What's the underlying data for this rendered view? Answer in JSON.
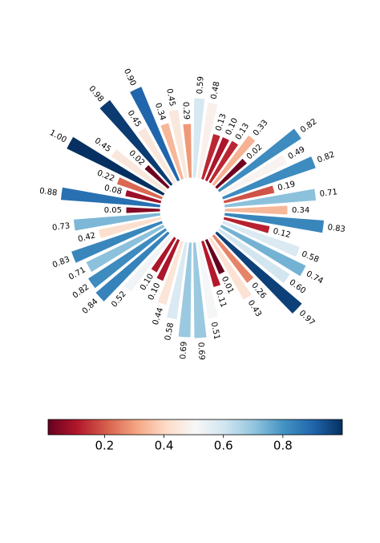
{
  "chart_data": {
    "type": "radial_bar",
    "values": [
      0.59,
      0.48,
      0.13,
      0.1,
      0.13,
      0.33,
      0.02,
      0.82,
      0.49,
      0.82,
      0.19,
      0.71,
      0.34,
      0.83,
      0.12,
      0.58,
      0.74,
      0.6,
      0.97,
      0.26,
      0.43,
      0.01,
      0.11,
      0.51,
      0.69,
      0.69,
      0.58,
      0.44,
      0.1,
      0.1,
      0.52,
      0.84,
      0.82,
      0.71,
      0.83,
      0.42,
      0.73,
      0.05,
      0.88,
      0.08,
      0.22,
      1.0,
      0.45,
      0.02,
      0.98,
      0.45,
      0.9,
      0.34,
      0.45,
      0.29
    ],
    "value_labels": [
      "0.59",
      "0.48",
      "0.13",
      "0.10",
      "0.13",
      "0.33",
      "0.02",
      "0.82",
      "0.49",
      "0.82",
      "0.19",
      "0.71",
      "0.34",
      "0.83",
      "0.12",
      "0.58",
      "0.74",
      "0.60",
      "0.97",
      "0.26",
      "0.43",
      "0.01",
      "0.11",
      "0.51",
      "0.69",
      "0.69",
      "0.58",
      "0.44",
      "0.10",
      "0.10",
      "0.52",
      "0.84",
      "0.82",
      "0.71",
      "0.83",
      "0.42",
      "0.73",
      "0.05",
      "0.88",
      "0.08",
      "0.22",
      "1.00",
      "0.45",
      "0.02",
      "0.98",
      "0.45",
      "0.90",
      "0.34",
      "0.45",
      "0.29"
    ],
    "heights": [
      100,
      96,
      59,
      59,
      60,
      77,
      50,
      123,
      92,
      123,
      65,
      115,
      79,
      125,
      59,
      102,
      118,
      106,
      140,
      74,
      89,
      47,
      60,
      97,
      120,
      119,
      98,
      83,
      56,
      50,
      88,
      119,
      116,
      108,
      120,
      80,
      109,
      43,
      125,
      46,
      60,
      135,
      82,
      39,
      132,
      79,
      127,
      73,
      87,
      68
    ],
    "colormap": "RdBu",
    "clim": [
      0.01,
      1.0
    ],
    "colorbar_ticks": [
      0.2,
      0.4,
      0.6,
      0.8
    ]
  }
}
